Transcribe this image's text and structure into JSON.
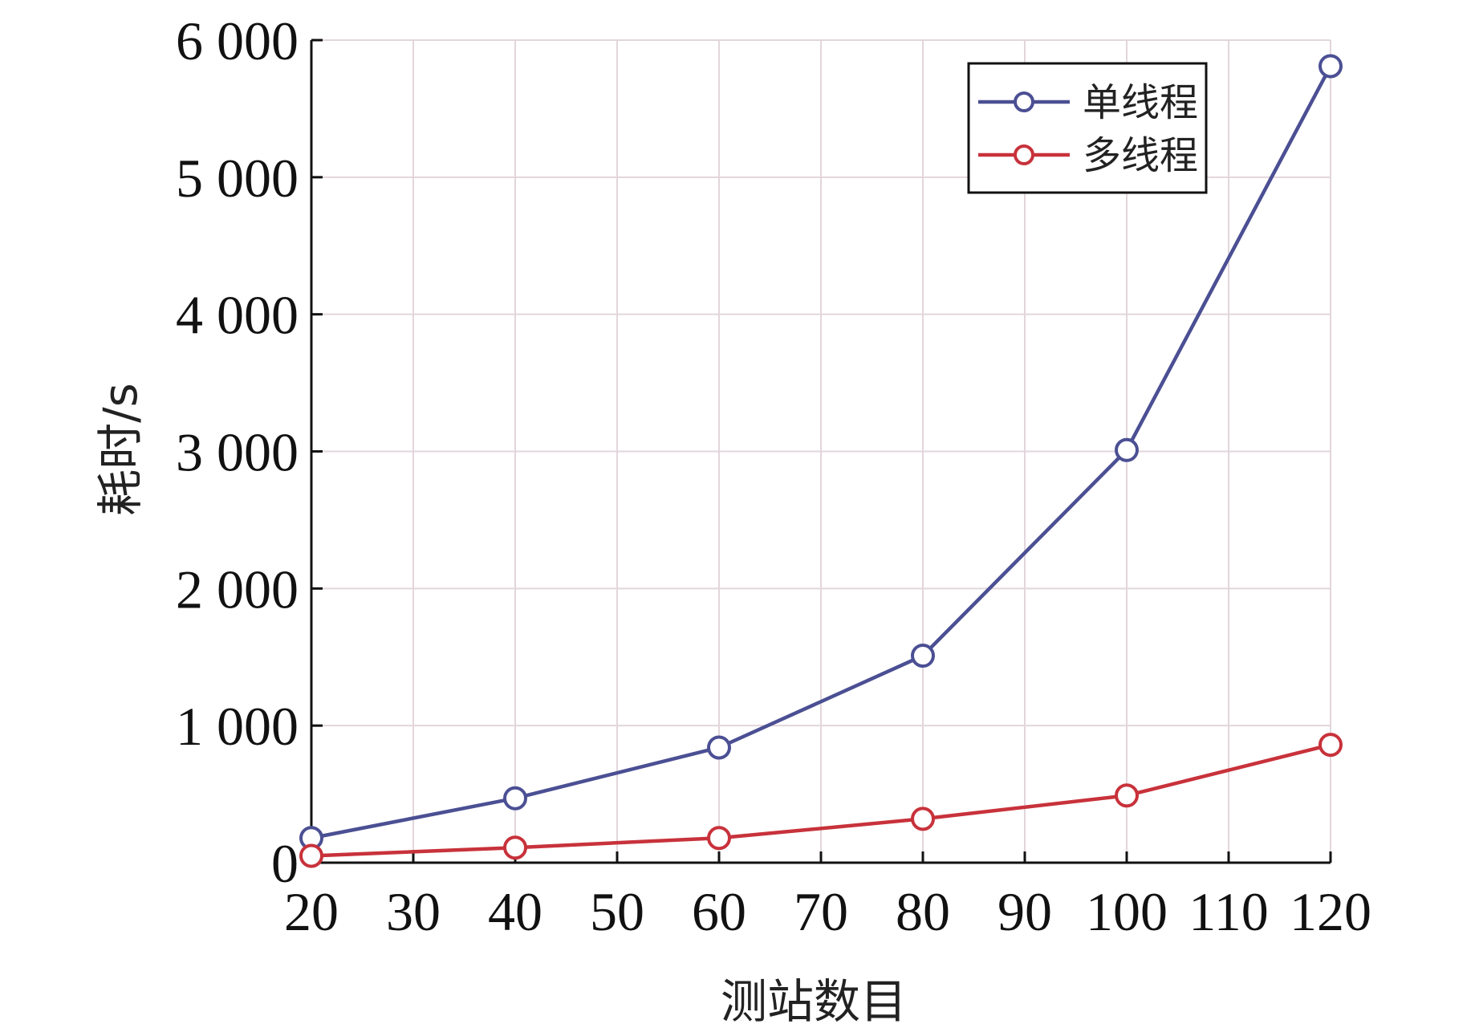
{
  "chart_data": {
    "type": "line",
    "title": "",
    "xlabel": "测站数目",
    "ylabel": "耗时/s",
    "xlim": [
      20,
      120
    ],
    "ylim": [
      0,
      6000
    ],
    "x_ticks": [
      20,
      30,
      40,
      50,
      60,
      70,
      80,
      90,
      100,
      110,
      120
    ],
    "x_tick_labels": [
      "20",
      "30",
      "40",
      "50",
      "60",
      "70",
      "80",
      "90",
      "100",
      "110",
      "120"
    ],
    "y_ticks": [
      0,
      1000,
      2000,
      3000,
      4000,
      5000,
      6000
    ],
    "y_tick_labels": [
      "0",
      "1 000",
      "2 000",
      "3 000",
      "4 000",
      "5 000",
      "6 000"
    ],
    "grid": true,
    "legend_position": "top-right",
    "x": [
      20,
      40,
      60,
      80,
      100,
      120
    ],
    "series": [
      {
        "name": "单线程",
        "color": "#4b4f93",
        "marker": "circle",
        "values": [
          180,
          470,
          840,
          1510,
          3010,
          5810
        ]
      },
      {
        "name": "多线程",
        "color": "#c8323b",
        "marker": "circle",
        "values": [
          50,
          110,
          180,
          320,
          490,
          860
        ]
      }
    ]
  }
}
